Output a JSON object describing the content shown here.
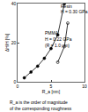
{
  "chart_data": {
    "type": "scatter",
    "x_label": "R_a [nm]",
    "y_label": "ΔH/H [%]",
    "caption": "R_a is the order of magnitude of the corresponding roughness",
    "annotations": [
      "Resin",
      "H = 0.30 GPa",
      "PMMA",
      "H = 0.22 GPa",
      "(R = 1.0 μm)"
    ],
    "series": [
      {
        "name": "Resin",
        "color": "#000000",
        "marker": "circle",
        "line_style": "solid",
        "x": [
          1,
          2,
          3,
          4,
          5,
          6,
          7
        ],
        "values": [
          2,
          5,
          8,
          12,
          17,
          24,
          40
        ]
      },
      {
        "name": "PMMA",
        "color": "#000000",
        "marker": "circle-open",
        "line_style": "solid",
        "x": [
          6,
          7,
          7.5
        ],
        "values": [
          10,
          18,
          30
        ]
      }
    ],
    "xlim": [
      0,
      10
    ],
    "xticks": [
      0,
      5,
      10
    ],
    "ylim": [
      0,
      40
    ],
    "yticks": [
      0,
      20,
      40
    ],
    "grid": false
  }
}
